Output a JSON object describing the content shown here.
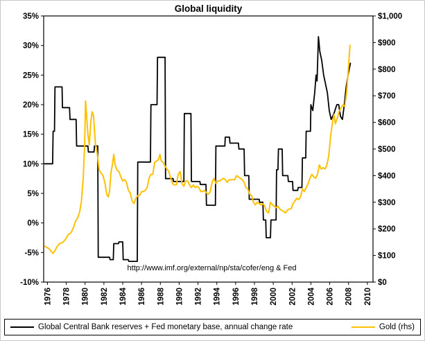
{
  "chart_data": {
    "type": "line",
    "title": "Global liquidity",
    "annotation": "http://www.imf.org/external/np/sta/cofer/eng & Fed",
    "grid": false,
    "legend_position": "bottom",
    "x_min": 1975.6,
    "x_max": 2010.6,
    "x_tick_values": [
      1976,
      1978,
      1980,
      1982,
      1984,
      1986,
      1988,
      1990,
      1992,
      1994,
      1996,
      1998,
      2000,
      2002,
      2004,
      2006,
      2008,
      2010
    ],
    "x_tick_labels": [
      "1976",
      "1978",
      "1980",
      "1982",
      "1984",
      "1986",
      "1988",
      "1990",
      "1992",
      "1994",
      "1996",
      "1998",
      "2000",
      "2002",
      "2004",
      "2006",
      "2008",
      "2010"
    ],
    "left_axis": {
      "min": -10,
      "max": 35,
      "unit": "%",
      "labels": [
        "35%",
        "30%",
        "25%",
        "20%",
        "15%",
        "10%",
        "5%",
        "0%",
        "-5%",
        "-10%"
      ]
    },
    "right_axis": {
      "min": 0,
      "max": 1000,
      "unit": "$",
      "labels": [
        "$1,000",
        "$900",
        "$800",
        "$700",
        "$600",
        "$500",
        "$400",
        "$300",
        "$200",
        "$100",
        "$0"
      ]
    },
    "series": [
      {
        "name": "Global Central Bank reserves + Fed monetary base, annual change rate",
        "axis": "left",
        "color": "#000000",
        "width": 1.8,
        "points": [
          [
            1975.7,
            10
          ],
          [
            1976.55,
            10
          ],
          [
            1976.6,
            15.5
          ],
          [
            1976.75,
            15.5
          ],
          [
            1976.8,
            23
          ],
          [
            1977.55,
            23
          ],
          [
            1977.6,
            19.5
          ],
          [
            1978.35,
            19.5
          ],
          [
            1978.4,
            17.5
          ],
          [
            1979.05,
            17.5
          ],
          [
            1979.1,
            13
          ],
          [
            1980.3,
            13
          ],
          [
            1980.35,
            12
          ],
          [
            1980.95,
            12
          ],
          [
            1981.0,
            13
          ],
          [
            1981.35,
            13
          ],
          [
            1981.4,
            -5.8
          ],
          [
            1982.6,
            -5.8
          ],
          [
            1982.65,
            -6.2
          ],
          [
            1983.0,
            -6.2
          ],
          [
            1983.05,
            -3.5
          ],
          [
            1983.55,
            -3.5
          ],
          [
            1983.6,
            -3.2
          ],
          [
            1984.0,
            -3.2
          ],
          [
            1984.05,
            -6.2
          ],
          [
            1984.6,
            -6.2
          ],
          [
            1984.65,
            -6.5
          ],
          [
            1985.55,
            -6.5
          ],
          [
            1985.6,
            10.3
          ],
          [
            1986.95,
            10.3
          ],
          [
            1987.0,
            20
          ],
          [
            1987.65,
            20
          ],
          [
            1987.7,
            28
          ],
          [
            1988.5,
            28
          ],
          [
            1988.55,
            7.5
          ],
          [
            1989.35,
            7.5
          ],
          [
            1989.4,
            7
          ],
          [
            1990.5,
            7
          ],
          [
            1990.55,
            18.5
          ],
          [
            1991.25,
            18.5
          ],
          [
            1991.3,
            7
          ],
          [
            1992.2,
            7
          ],
          [
            1992.25,
            6.5
          ],
          [
            1992.85,
            6.5
          ],
          [
            1992.9,
            3
          ],
          [
            1993.85,
            3
          ],
          [
            1993.9,
            13
          ],
          [
            1994.85,
            13
          ],
          [
            1994.9,
            14.5
          ],
          [
            1995.35,
            14.5
          ],
          [
            1995.4,
            13.5
          ],
          [
            1996.3,
            13.5
          ],
          [
            1996.35,
            12.5
          ],
          [
            1996.9,
            12.5
          ],
          [
            1996.95,
            8
          ],
          [
            1997.4,
            8
          ],
          [
            1997.45,
            4
          ],
          [
            1998.5,
            4
          ],
          [
            1998.55,
            3.5
          ],
          [
            1998.9,
            3.5
          ],
          [
            1998.95,
            0.5
          ],
          [
            1999.2,
            0.5
          ],
          [
            1999.25,
            -2.5
          ],
          [
            1999.7,
            -2.5
          ],
          [
            1999.75,
            0.5
          ],
          [
            2000.3,
            0.5
          ],
          [
            2000.35,
            9
          ],
          [
            2000.5,
            9
          ],
          [
            2000.55,
            12.5
          ],
          [
            2000.95,
            12.5
          ],
          [
            2001.0,
            8
          ],
          [
            2001.55,
            8
          ],
          [
            2001.6,
            7
          ],
          [
            2002.05,
            7
          ],
          [
            2002.1,
            5.5
          ],
          [
            2002.6,
            5.5
          ],
          [
            2002.65,
            6
          ],
          [
            2003.05,
            6
          ],
          [
            2003.1,
            11
          ],
          [
            2003.45,
            11
          ],
          [
            2003.5,
            15.5
          ],
          [
            2003.95,
            15.5
          ],
          [
            2004.0,
            20
          ],
          [
            2004.2,
            19
          ],
          [
            2004.4,
            22
          ],
          [
            2004.55,
            25
          ],
          [
            2004.65,
            24
          ],
          [
            2004.8,
            31.5
          ],
          [
            2004.95,
            29
          ],
          [
            2005.15,
            27.5
          ],
          [
            2005.35,
            25
          ],
          [
            2005.55,
            23.5
          ],
          [
            2005.75,
            22
          ],
          [
            2005.95,
            19
          ],
          [
            2006.15,
            17.5
          ],
          [
            2006.45,
            18.5
          ],
          [
            2006.75,
            20
          ],
          [
            2006.95,
            20
          ],
          [
            2007.15,
            18
          ],
          [
            2007.35,
            17.5
          ],
          [
            2007.55,
            20
          ],
          [
            2007.75,
            23
          ],
          [
            2007.95,
            25
          ],
          [
            2008.2,
            27
          ]
        ]
      },
      {
        "name": "Gold (rhs)",
        "axis": "right",
        "color": "#FFC000",
        "width": 2,
        "points": [
          [
            1975.7,
            135
          ],
          [
            1976.2,
            125
          ],
          [
            1976.4,
            115
          ],
          [
            1976.6,
            108
          ],
          [
            1976.8,
            118
          ],
          [
            1977.0,
            132
          ],
          [
            1977.3,
            145
          ],
          [
            1977.6,
            148
          ],
          [
            1977.9,
            160
          ],
          [
            1978.2,
            178
          ],
          [
            1978.5,
            185
          ],
          [
            1978.8,
            208
          ],
          [
            1979.0,
            230
          ],
          [
            1979.2,
            240
          ],
          [
            1979.4,
            260
          ],
          [
            1979.6,
            300
          ],
          [
            1979.8,
            390
          ],
          [
            1979.95,
            510
          ],
          [
            1980.05,
            680
          ],
          [
            1980.15,
            630
          ],
          [
            1980.3,
            555
          ],
          [
            1980.45,
            515
          ],
          [
            1980.6,
            600
          ],
          [
            1980.75,
            640
          ],
          [
            1980.9,
            625
          ],
          [
            1981.1,
            520
          ],
          [
            1981.3,
            480
          ],
          [
            1981.5,
            420
          ],
          [
            1981.7,
            410
          ],
          [
            1981.9,
            400
          ],
          [
            1982.1,
            375
          ],
          [
            1982.3,
            330
          ],
          [
            1982.45,
            320
          ],
          [
            1982.6,
            340
          ],
          [
            1982.75,
            410
          ],
          [
            1982.9,
            440
          ],
          [
            1983.05,
            480
          ],
          [
            1983.2,
            440
          ],
          [
            1983.4,
            420
          ],
          [
            1983.6,
            415
          ],
          [
            1983.8,
            395
          ],
          [
            1984.0,
            380
          ],
          [
            1984.2,
            385
          ],
          [
            1984.4,
            375
          ],
          [
            1984.6,
            345
          ],
          [
            1984.8,
            335
          ],
          [
            1985.0,
            305
          ],
          [
            1985.2,
            295
          ],
          [
            1985.4,
            315
          ],
          [
            1985.6,
            325
          ],
          [
            1985.8,
            325
          ],
          [
            1986.0,
            340
          ],
          [
            1986.2,
            340
          ],
          [
            1986.4,
            345
          ],
          [
            1986.6,
            355
          ],
          [
            1986.8,
            390
          ],
          [
            1987.0,
            405
          ],
          [
            1987.2,
            405
          ],
          [
            1987.4,
            450
          ],
          [
            1987.6,
            455
          ],
          [
            1987.8,
            460
          ],
          [
            1987.95,
            480
          ],
          [
            1988.1,
            455
          ],
          [
            1988.3,
            450
          ],
          [
            1988.5,
            435
          ],
          [
            1988.7,
            425
          ],
          [
            1988.9,
            415
          ],
          [
            1989.1,
            390
          ],
          [
            1989.3,
            370
          ],
          [
            1989.5,
            365
          ],
          [
            1989.7,
            365
          ],
          [
            1989.9,
            405
          ],
          [
            1990.1,
            415
          ],
          [
            1990.3,
            370
          ],
          [
            1990.5,
            360
          ],
          [
            1990.7,
            380
          ],
          [
            1990.9,
            380
          ],
          [
            1991.1,
            365
          ],
          [
            1991.3,
            355
          ],
          [
            1991.5,
            365
          ],
          [
            1991.7,
            355
          ],
          [
            1991.9,
            360
          ],
          [
            1992.1,
            355
          ],
          [
            1992.3,
            340
          ],
          [
            1992.5,
            340
          ],
          [
            1992.7,
            345
          ],
          [
            1992.9,
            335
          ],
          [
            1993.1,
            330
          ],
          [
            1993.3,
            340
          ],
          [
            1993.5,
            375
          ],
          [
            1993.7,
            390
          ],
          [
            1993.9,
            370
          ],
          [
            1994.1,
            380
          ],
          [
            1994.3,
            380
          ],
          [
            1994.5,
            385
          ],
          [
            1994.7,
            390
          ],
          [
            1994.9,
            385
          ],
          [
            1995.1,
            375
          ],
          [
            1995.3,
            385
          ],
          [
            1995.5,
            385
          ],
          [
            1995.7,
            385
          ],
          [
            1995.9,
            385
          ],
          [
            1996.1,
            400
          ],
          [
            1996.3,
            395
          ],
          [
            1996.5,
            390
          ],
          [
            1996.7,
            385
          ],
          [
            1996.9,
            375
          ],
          [
            1997.1,
            355
          ],
          [
            1997.3,
            350
          ],
          [
            1997.5,
            330
          ],
          [
            1997.7,
            325
          ],
          [
            1997.9,
            300
          ],
          [
            1998.1,
            290
          ],
          [
            1998.3,
            300
          ],
          [
            1998.5,
            295
          ],
          [
            1998.7,
            290
          ],
          [
            1998.9,
            295
          ],
          [
            1999.1,
            285
          ],
          [
            1999.3,
            265
          ],
          [
            1999.5,
            260
          ],
          [
            1999.7,
            300
          ],
          [
            1999.9,
            290
          ],
          [
            2000.1,
            285
          ],
          [
            2000.3,
            280
          ],
          [
            2000.5,
            285
          ],
          [
            2000.7,
            275
          ],
          [
            2000.9,
            270
          ],
          [
            2001.1,
            265
          ],
          [
            2001.3,
            260
          ],
          [
            2001.5,
            270
          ],
          [
            2001.7,
            275
          ],
          [
            2001.9,
            275
          ],
          [
            2002.1,
            295
          ],
          [
            2002.3,
            305
          ],
          [
            2002.5,
            315
          ],
          [
            2002.7,
            310
          ],
          [
            2002.9,
            320
          ],
          [
            2003.1,
            350
          ],
          [
            2003.3,
            340
          ],
          [
            2003.5,
            355
          ],
          [
            2003.7,
            370
          ],
          [
            2003.9,
            390
          ],
          [
            2004.1,
            405
          ],
          [
            2004.3,
            395
          ],
          [
            2004.5,
            390
          ],
          [
            2004.7,
            405
          ],
          [
            2004.9,
            440
          ],
          [
            2005.1,
            425
          ],
          [
            2005.3,
            430
          ],
          [
            2005.5,
            425
          ],
          [
            2005.7,
            440
          ],
          [
            2005.9,
            475
          ],
          [
            2006.1,
            550
          ],
          [
            2006.3,
            600
          ],
          [
            2006.45,
            630
          ],
          [
            2006.6,
            595
          ],
          [
            2006.8,
            615
          ],
          [
            2007.0,
            640
          ],
          [
            2007.2,
            655
          ],
          [
            2007.4,
            665
          ],
          [
            2007.6,
            660
          ],
          [
            2007.8,
            715
          ],
          [
            2008.0,
            810
          ],
          [
            2008.15,
            890
          ]
        ]
      }
    ]
  }
}
